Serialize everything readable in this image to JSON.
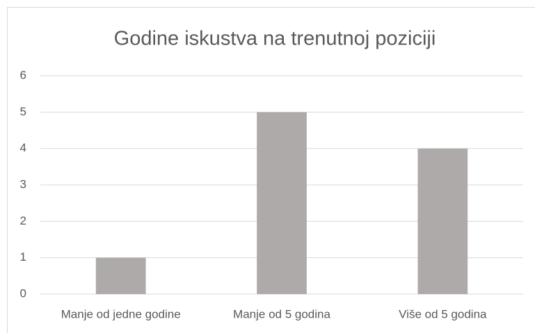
{
  "chart_data": {
    "type": "bar",
    "title": "Godine iskustva na trenutnoj poziciji",
    "categories": [
      "Manje od jedne godine",
      "Manje od 5 godina",
      "Više od 5 godina"
    ],
    "values": [
      1,
      5,
      4
    ],
    "color": "#aeaaaa",
    "ylim": [
      0,
      6
    ],
    "yticks": [
      0,
      1,
      2,
      3,
      4,
      5,
      6
    ],
    "grid": true
  }
}
